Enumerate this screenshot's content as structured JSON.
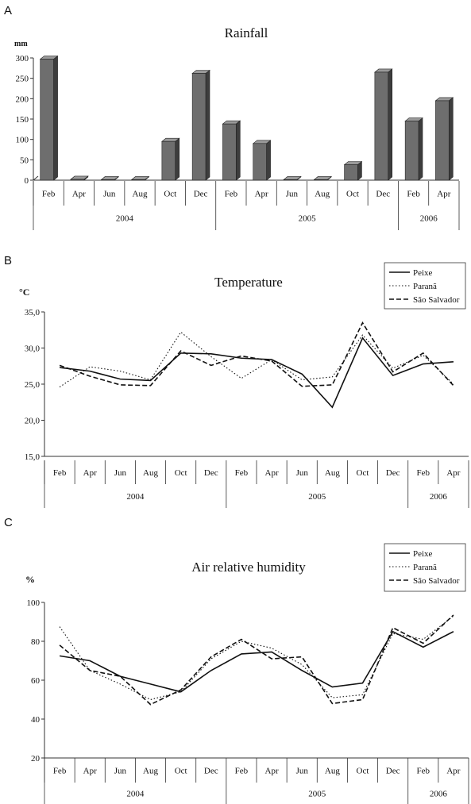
{
  "chart_data": [
    {
      "panel": "A",
      "type": "bar",
      "title": "Rainfall",
      "ylabel": "mm",
      "ylim": [
        0,
        300
      ],
      "yticks": [
        "0",
        "50",
        "100",
        "150",
        "200",
        "250",
        "300"
      ],
      "categories": [
        "Feb",
        "Apr",
        "Jun",
        "Aug",
        "Oct",
        "Dec",
        "Feb",
        "Apr",
        "Jun",
        "Aug",
        "Oct",
        "Dec",
        "Feb",
        "Apr"
      ],
      "years": [
        {
          "label": "2004",
          "count": 6
        },
        {
          "label": "2005",
          "count": 6
        },
        {
          "label": "2006",
          "count": 2
        }
      ],
      "values": [
        297,
        2,
        1,
        1,
        95,
        262,
        138,
        90,
        1,
        1,
        38,
        265,
        145,
        195
      ],
      "bar_color": "#6e6e6e"
    },
    {
      "panel": "B",
      "type": "line",
      "title": "Temperature",
      "ylabel": "°C",
      "ylim": [
        15,
        35
      ],
      "yticks": [
        "15,0",
        "20,0",
        "25,0",
        "30,0",
        "35,0"
      ],
      "categories": [
        "Feb",
        "Apr",
        "Jun",
        "Aug",
        "Oct",
        "Dec",
        "Feb",
        "Apr",
        "Jun",
        "Aug",
        "Oct",
        "Dec",
        "Feb",
        "Apr"
      ],
      "years": [
        {
          "label": "2004",
          "count": 6
        },
        {
          "label": "2005",
          "count": 6
        },
        {
          "label": "2006",
          "count": 2
        }
      ],
      "legend": "top-right",
      "series": [
        {
          "name": "Peixe",
          "style": "solid",
          "values": [
            27.3,
            26.8,
            25.7,
            25.5,
            29.3,
            29.2,
            28.6,
            28.4,
            26.4,
            21.8,
            31.4,
            26.2,
            27.8,
            28.1
          ]
        },
        {
          "name": "Paranã",
          "style": "dotted",
          "values": [
            24.6,
            27.4,
            26.8,
            25.6,
            32.2,
            28.8,
            25.8,
            28.4,
            25.6,
            26.0,
            31.8,
            27.2,
            29.0,
            25.0
          ]
        },
        {
          "name": "São Salvador",
          "style": "dashed",
          "values": [
            27.6,
            26.1,
            24.9,
            24.8,
            29.6,
            27.6,
            28.9,
            28.2,
            24.7,
            24.9,
            33.5,
            26.7,
            29.3,
            24.8
          ]
        }
      ]
    },
    {
      "panel": "C",
      "type": "line",
      "title": "Air relative humidity",
      "ylabel": "%",
      "ylim": [
        20,
        100
      ],
      "yticks": [
        "20",
        "40",
        "60",
        "80",
        "100"
      ],
      "categories": [
        "Feb",
        "Apr",
        "Jun",
        "Aug",
        "Oct",
        "Dec",
        "Feb",
        "Apr",
        "Jun",
        "Aug",
        "Oct",
        "Dec",
        "Feb",
        "Apr"
      ],
      "years": [
        {
          "label": "2004",
          "count": 6
        },
        {
          "label": "2005",
          "count": 6
        },
        {
          "label": "2006",
          "count": 2
        }
      ],
      "legend": "top-right",
      "series": [
        {
          "name": "Peixe",
          "style": "solid",
          "values": [
            72.5,
            70.0,
            62.0,
            58.0,
            54.0,
            65.0,
            73.5,
            74.5,
            65.0,
            56.5,
            58.5,
            85.0,
            77.0,
            85.0
          ]
        },
        {
          "name": "Paranã",
          "style": "dotted",
          "values": [
            87.5,
            65.0,
            58.0,
            50.0,
            54.0,
            71.0,
            80.0,
            76.5,
            68.0,
            51.0,
            52.5,
            84.0,
            81.0,
            93.0
          ]
        },
        {
          "name": "São Salvador",
          "style": "dashed",
          "values": [
            78.0,
            65.0,
            62.0,
            47.5,
            55.0,
            72.0,
            81.0,
            71.0,
            72.0,
            48.0,
            50.0,
            87.0,
            79.0,
            93.5
          ]
        }
      ]
    }
  ]
}
